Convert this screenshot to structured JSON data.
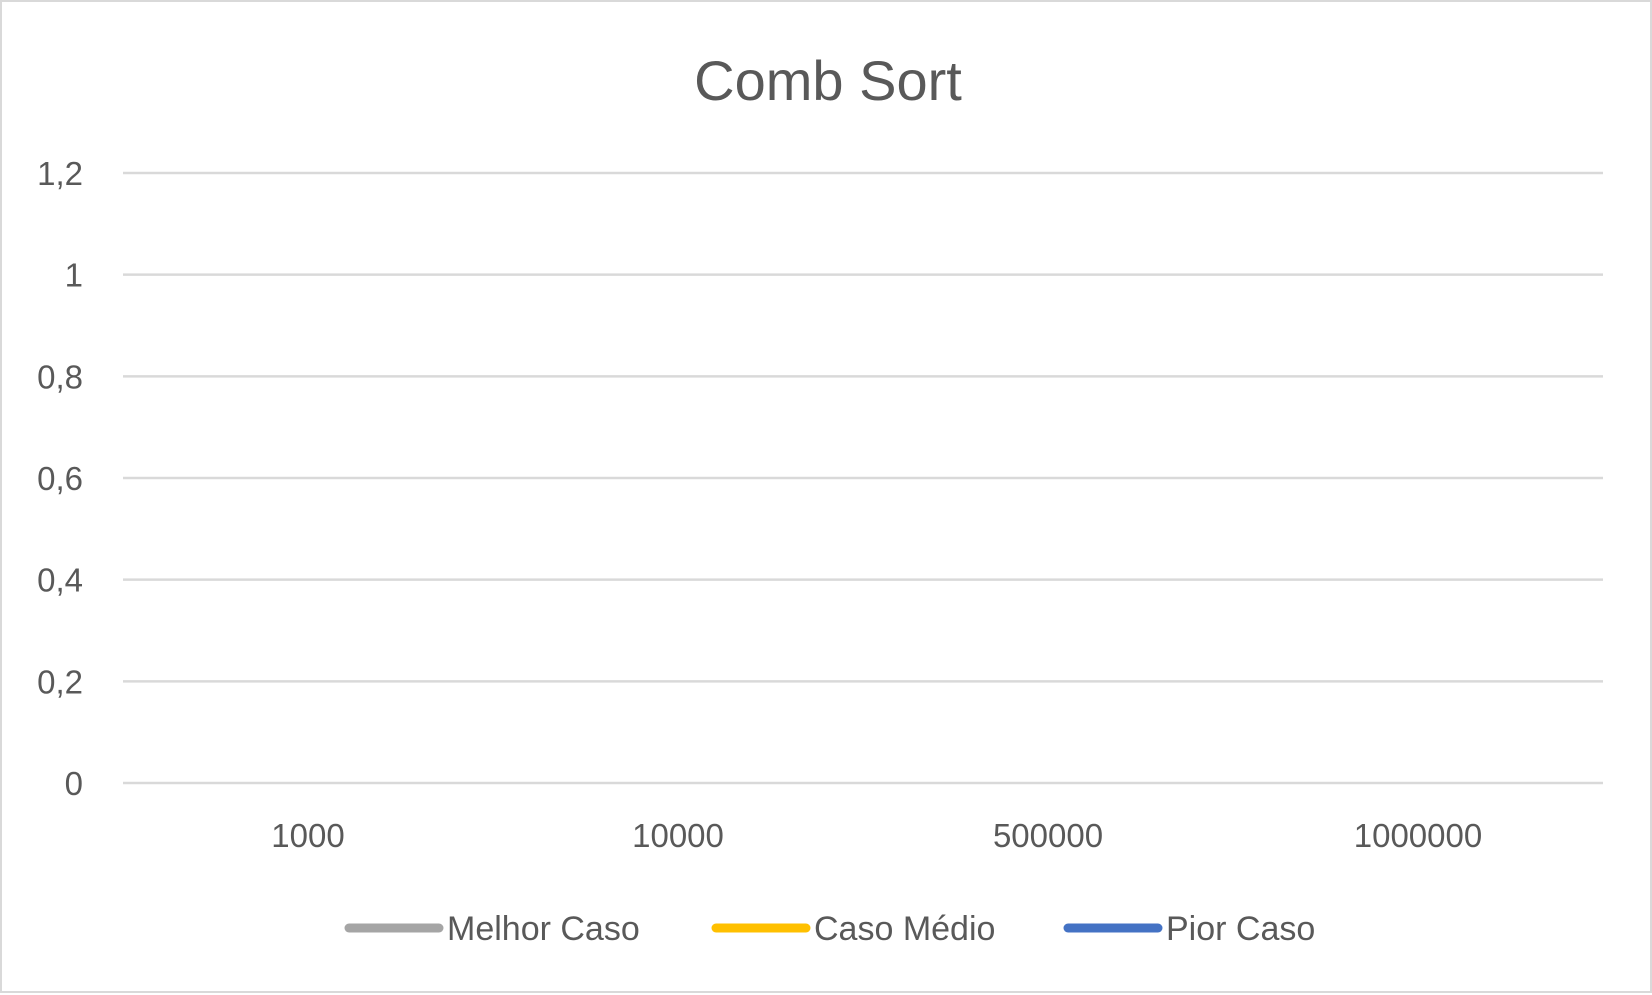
{
  "chart_data": {
    "type": "line",
    "title": "Comb Sort",
    "xlabel": "",
    "ylabel": "",
    "categories": [
      "1000",
      "10000",
      "500000",
      "1000000"
    ],
    "y_ticks": [
      "0",
      "0,2",
      "0,4",
      "0,6",
      "0,8",
      "1",
      "1,2"
    ],
    "ylim": [
      0,
      1.2
    ],
    "grid": true,
    "legend_position": "bottom",
    "series": [
      {
        "name": "Melhor Caso",
        "color": "#a5a5a5",
        "values": [
          null,
          null,
          null,
          null
        ]
      },
      {
        "name": "Caso Médio",
        "color": "#ffc000",
        "values": [
          null,
          null,
          null,
          null
        ]
      },
      {
        "name": "Pior Caso",
        "color": "#4472c4",
        "values": [
          null,
          null,
          null,
          null
        ]
      }
    ]
  }
}
